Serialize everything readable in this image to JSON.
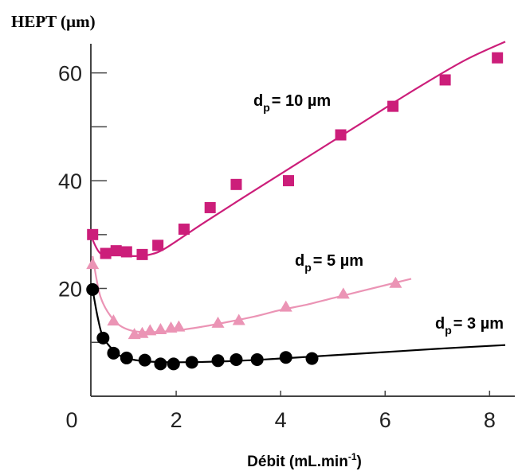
{
  "chart_data": {
    "type": "scatter",
    "ylabel": "HEPT (µm)",
    "xlabel": {
      "text": "Débit (mL.min",
      "superscript": "-1",
      "suffix": ")"
    },
    "xlim": [
      0,
      8.3
    ],
    "ylim": [
      0,
      66
    ],
    "x_ticks": [
      0,
      2,
      4,
      6,
      8
    ],
    "y_ticks": [
      20,
      40,
      60
    ],
    "x_tick_labels": [
      "0",
      "2",
      "4",
      "6",
      "8"
    ],
    "y_tick_labels": [
      "20",
      "40",
      "60"
    ],
    "grid": false,
    "series": [
      {
        "name": "dp = 10 µm",
        "label": {
          "main": "d",
          "sub": "p",
          "rest": "= 10 µm"
        },
        "color": "#cc1e7a",
        "marker": "square",
        "points": [
          [
            0.4,
            30.0
          ],
          [
            0.65,
            26.5
          ],
          [
            0.85,
            27.0
          ],
          [
            1.05,
            26.8
          ],
          [
            1.35,
            26.3
          ],
          [
            1.65,
            28.0
          ],
          [
            2.15,
            31.0
          ],
          [
            2.65,
            35.0
          ],
          [
            3.15,
            39.3
          ],
          [
            4.15,
            40.0
          ],
          [
            5.15,
            48.5
          ],
          [
            6.15,
            53.8
          ],
          [
            7.15,
            58.7
          ],
          [
            8.15,
            62.8
          ]
        ],
        "fit": [
          [
            0.4,
            29.0
          ],
          [
            0.55,
            26.5
          ],
          [
            0.8,
            26.3
          ],
          [
            1.2,
            26.0
          ],
          [
            1.5,
            26.3
          ],
          [
            1.8,
            27.5
          ],
          [
            2.5,
            32.0
          ],
          [
            3.5,
            38.2
          ],
          [
            4.5,
            44.3
          ],
          [
            5.5,
            50.4
          ],
          [
            6.5,
            56.5
          ],
          [
            7.5,
            62.2
          ],
          [
            8.3,
            65.8
          ]
        ]
      },
      {
        "name": "dp = 5 µm",
        "label": {
          "main": "d",
          "sub": "p",
          "rest": "= 5 µm"
        },
        "color": "#eb94b5",
        "marker": "triangle",
        "points": [
          [
            0.4,
            24.5
          ],
          [
            0.8,
            14.0
          ],
          [
            1.2,
            11.5
          ],
          [
            1.35,
            11.7
          ],
          [
            1.5,
            12.2
          ],
          [
            1.7,
            12.4
          ],
          [
            1.9,
            12.7
          ],
          [
            2.05,
            12.9
          ],
          [
            2.8,
            13.6
          ],
          [
            3.2,
            14.1
          ],
          [
            4.1,
            16.6
          ],
          [
            5.2,
            19.0
          ],
          [
            6.2,
            21.0
          ]
        ],
        "fit": [
          [
            0.4,
            26.0
          ],
          [
            0.55,
            18.5
          ],
          [
            0.8,
            14.2
          ],
          [
            1.1,
            12.3
          ],
          [
            1.5,
            11.9
          ],
          [
            2.0,
            12.2
          ],
          [
            2.5,
            12.9
          ],
          [
            3.0,
            13.8
          ],
          [
            3.5,
            14.8
          ],
          [
            4.0,
            16.0
          ],
          [
            4.5,
            17.0
          ],
          [
            5.0,
            18.2
          ],
          [
            5.5,
            19.4
          ],
          [
            6.0,
            20.6
          ],
          [
            6.5,
            21.8
          ]
        ]
      },
      {
        "name": "dp = 3 µm",
        "label": {
          "main": "d",
          "sub": "p",
          "rest": "= 3 µm"
        },
        "color": "#000000",
        "marker": "circle",
        "points": [
          [
            0.4,
            19.8
          ],
          [
            0.6,
            10.8
          ],
          [
            0.8,
            8.0
          ],
          [
            1.05,
            7.1
          ],
          [
            1.4,
            6.7
          ],
          [
            1.7,
            6.0
          ],
          [
            1.95,
            6.0
          ],
          [
            2.3,
            6.3
          ],
          [
            2.8,
            6.6
          ],
          [
            3.15,
            6.8
          ],
          [
            3.55,
            6.8
          ],
          [
            4.1,
            7.2
          ],
          [
            4.6,
            7.0
          ]
        ],
        "fit": [
          [
            0.4,
            19.8
          ],
          [
            0.5,
            14.5
          ],
          [
            0.6,
            11.0
          ],
          [
            0.8,
            8.5
          ],
          [
            1.0,
            7.2
          ],
          [
            1.4,
            6.5
          ],
          [
            2.0,
            6.3
          ],
          [
            3.0,
            6.5
          ],
          [
            4.0,
            7.0
          ],
          [
            5.0,
            7.6
          ],
          [
            6.0,
            8.2
          ],
          [
            7.0,
            8.8
          ],
          [
            8.3,
            9.5
          ]
        ]
      }
    ]
  }
}
